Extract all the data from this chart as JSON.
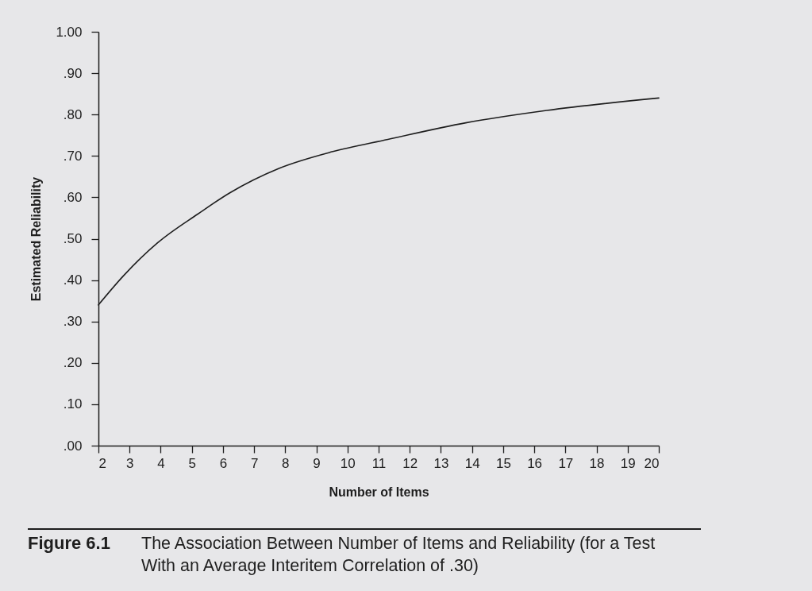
{
  "chart_data": {
    "type": "line",
    "title": "Figure 6.1",
    "subtitle": "The Association Between Number of Items and Reliability (for a Test With an Average Interitem Correlation of .30)",
    "xlabel": "Number of Items",
    "ylabel": "Estimated Reliability",
    "x": [
      2,
      2.8,
      3.9,
      5.2,
      6.2,
      7.8,
      9.5,
      11.3,
      13.8,
      16.4,
      20
    ],
    "values": [
      0.34,
      0.41,
      0.49,
      0.56,
      0.61,
      0.67,
      0.71,
      0.74,
      0.78,
      0.81,
      0.84
    ],
    "color": "#1e1e1e",
    "xlim": [
      2,
      20
    ],
    "xticks": [
      2,
      3,
      4,
      5,
      6,
      7,
      8,
      9,
      10,
      11,
      12,
      13,
      14,
      15,
      16,
      17,
      18,
      19,
      20
    ],
    "ylim": [
      0,
      1
    ],
    "yticks": [
      {
        "value": 0,
        "label": ".00"
      },
      {
        "value": 0.1,
        "label": ".10"
      },
      {
        "value": 0.2,
        "label": ".20"
      },
      {
        "value": 0.3,
        "label": ".30"
      },
      {
        "value": 0.4,
        "label": ".40"
      },
      {
        "value": 0.5,
        "label": ".50"
      },
      {
        "value": 0.6,
        "label": ".60"
      },
      {
        "value": 0.7,
        "label": ".70"
      },
      {
        "value": 0.8,
        "label": ".80"
      },
      {
        "value": 0.9,
        "label": ".90"
      },
      {
        "value": 1,
        "label": "1.00"
      }
    ]
  }
}
